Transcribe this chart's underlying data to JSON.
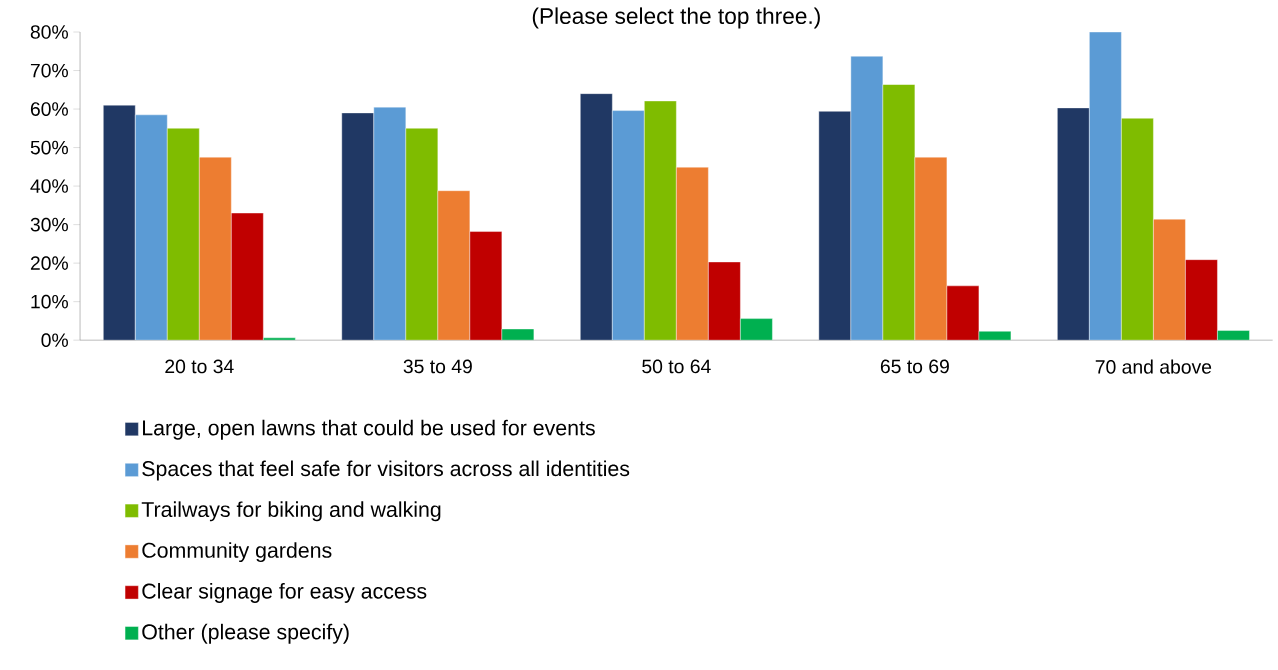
{
  "chart_data": {
    "type": "bar",
    "title": "(Please select the top three.)",
    "categories": [
      "20 to 34",
      "35 to 49",
      "50 to 64",
      "65 to 69",
      "70 and above"
    ],
    "series": [
      {
        "name": "Large, open lawns that could be used for events",
        "color": "#203864",
        "values": [
          61.0,
          59.0,
          64.0,
          59.4,
          60.3
        ]
      },
      {
        "name": "Spaces that feel safe for visitors across all identities",
        "color": "#5b9bd5",
        "values": [
          58.5,
          60.5,
          59.6,
          73.7,
          80.0
        ]
      },
      {
        "name": "Trailways for biking and walking",
        "color": "#7fbc00",
        "values": [
          55.0,
          55.0,
          62.1,
          66.4,
          57.6
        ]
      },
      {
        "name": "Community gardens",
        "color": "#ed7d31",
        "values": [
          47.5,
          38.8,
          44.9,
          47.5,
          31.4
        ]
      },
      {
        "name": "Clear signage for easy access",
        "color": "#c00000",
        "values": [
          33.0,
          28.2,
          20.3,
          14.1,
          20.9
        ]
      },
      {
        "name": "Other (please specify)",
        "color": "#00b050",
        "values": [
          0.6,
          2.9,
          5.6,
          2.3,
          2.5
        ]
      }
    ],
    "ylim": [
      0,
      80
    ],
    "yticks": [
      {
        "value": 0,
        "label": "0%"
      },
      {
        "value": 10,
        "label": "10%"
      },
      {
        "value": 20,
        "label": "20%"
      },
      {
        "value": 30,
        "label": "30%"
      },
      {
        "value": 40,
        "label": "40%"
      },
      {
        "value": 50,
        "label": "50%"
      },
      {
        "value": 60,
        "label": "60%"
      },
      {
        "value": 70,
        "label": "70%"
      },
      {
        "value": 80,
        "label": "80%"
      }
    ],
    "grid": false,
    "legend": "bottom"
  }
}
